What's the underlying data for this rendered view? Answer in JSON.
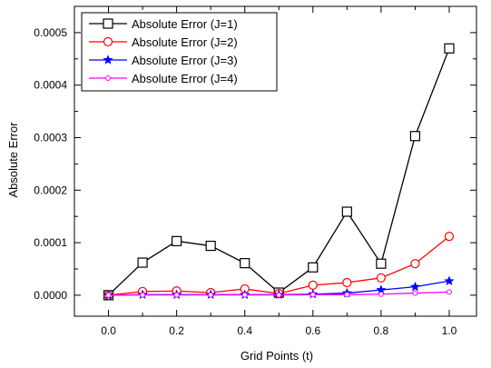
{
  "chart_data": {
    "type": "line",
    "xlabel": "Grid Points (t)",
    "ylabel": "Absolute Error",
    "xlim": [
      -0.1,
      1.08
    ],
    "ylim": [
      -4e-05,
      0.00055
    ],
    "x_ticks": [
      0.0,
      0.2,
      0.4,
      0.6,
      0.8,
      1.0
    ],
    "x_tick_labels": [
      "0.0",
      "0.2",
      "0.4",
      "0.6",
      "0.8",
      "1.0"
    ],
    "y_ticks": [
      0.0,
      0.0001,
      0.0002,
      0.0003,
      0.0004,
      0.0005
    ],
    "y_tick_labels": [
      "0.0000",
      "0.0001",
      "0.0002",
      "0.0003",
      "0.0004",
      "0.0005"
    ],
    "grid": false,
    "legend_position": "top-left",
    "x": [
      0.0,
      0.1,
      0.2,
      0.3,
      0.4,
      0.5,
      0.6,
      0.7,
      0.8,
      0.9,
      1.0
    ],
    "series": [
      {
        "name": "Absolute Error (J=1)",
        "color": "#000000",
        "marker": "square",
        "values": [
          0.0,
          6.2e-05,
          0.000103,
          9.4e-05,
          6.1e-05,
          5e-06,
          5.3e-05,
          0.000159,
          6e-05,
          0.000303,
          0.00047
        ]
      },
      {
        "name": "Absolute Error (J=2)",
        "color": "#ff0000",
        "marker": "circle",
        "values": [
          0.0,
          7e-06,
          8e-06,
          5e-06,
          1.2e-05,
          3e-06,
          1.9e-05,
          2.4e-05,
          3.3e-05,
          6e-05,
          0.000112
        ]
      },
      {
        "name": "Absolute Error (J=3)",
        "color": "#0000ff",
        "marker": "star",
        "values": [
          0.0,
          1e-06,
          1e-06,
          1e-06,
          1e-06,
          1e-06,
          2e-06,
          4e-06,
          1e-05,
          1.6e-05,
          2.7e-05
        ]
      },
      {
        "name": "Absolute Error (J=4)",
        "color": "#ff00ff",
        "marker": "small-circle",
        "values": [
          0.0,
          5e-07,
          5e-07,
          5e-07,
          5e-07,
          5e-07,
          1e-06,
          1e-06,
          2e-06,
          4e-06,
          6e-06
        ]
      }
    ]
  }
}
